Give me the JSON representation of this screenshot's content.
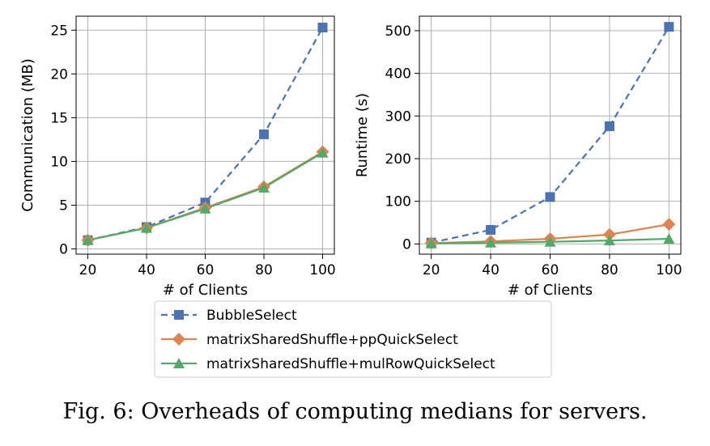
{
  "caption": "Fig. 6: Overheads of computing medians for servers.",
  "colors": {
    "BubbleSelect": "#4c72b0",
    "matrixSharedShuffle+ppQuickSelect": "#dd8452",
    "matrixSharedShuffle+mulRowQuickSelect": "#55a868",
    "grid": "#b0b0b0"
  },
  "legend": {
    "placement": "bottom-center",
    "entries": [
      {
        "label": "BubbleSelect",
        "marker": "square",
        "dash": true
      },
      {
        "label": "matrixSharedShuffle+ppQuickSelect",
        "marker": "diamond",
        "dash": false
      },
      {
        "label": "matrixSharedShuffle+mulRowQuickSelect",
        "marker": "triangle",
        "dash": false
      }
    ]
  },
  "chart_data": [
    {
      "type": "line",
      "xlabel": "# of Clients",
      "ylabel": "Communication (MB)",
      "x": [
        20,
        40,
        60,
        80,
        100
      ],
      "xticks": [
        "20",
        "40",
        "60",
        "80",
        "100"
      ],
      "yticks": [
        "0",
        "5",
        "10",
        "15",
        "20",
        "25"
      ],
      "ytick_values": [
        0,
        5,
        10,
        15,
        20,
        25
      ],
      "xlim": [
        16,
        104
      ],
      "ylim": [
        -0.6,
        26.6
      ],
      "grid": true,
      "series": [
        {
          "name": "BubbleSelect",
          "values": [
            1.0,
            2.5,
            5.3,
            13.1,
            25.3
          ]
        },
        {
          "name": "matrixSharedShuffle+ppQuickSelect",
          "values": [
            1.0,
            2.4,
            4.7,
            7.1,
            11.1
          ]
        },
        {
          "name": "matrixSharedShuffle+mulRowQuickSelect",
          "values": [
            1.0,
            2.4,
            4.6,
            7.0,
            11.0
          ]
        }
      ]
    },
    {
      "type": "line",
      "xlabel": "# of Clients",
      "ylabel": "Runtime (s)",
      "x": [
        20,
        40,
        60,
        80,
        100
      ],
      "xticks": [
        "20",
        "40",
        "60",
        "80",
        "100"
      ],
      "yticks": [
        "0",
        "100",
        "200",
        "300",
        "400",
        "500"
      ],
      "ytick_values": [
        0,
        100,
        200,
        300,
        400,
        500
      ],
      "xlim": [
        16,
        104
      ],
      "ylim": [
        -24,
        534
      ],
      "grid": true,
      "series": [
        {
          "name": "BubbleSelect",
          "values": [
            3,
            33,
            110,
            276,
            509
          ]
        },
        {
          "name": "matrixSharedShuffle+ppQuickSelect",
          "values": [
            2,
            6,
            12,
            22,
            46
          ]
        },
        {
          "name": "matrixSharedShuffle+mulRowQuickSelect",
          "values": [
            1,
            3,
            5,
            8,
            12
          ]
        }
      ]
    }
  ]
}
